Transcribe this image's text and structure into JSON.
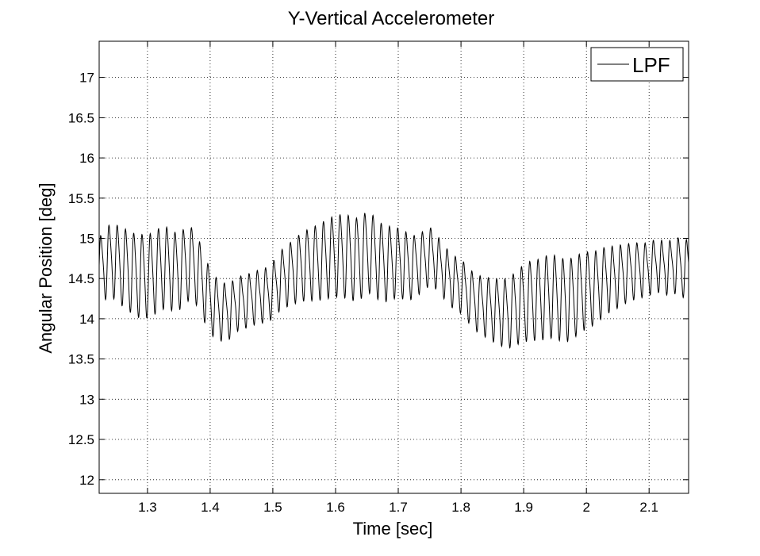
{
  "chart_data": {
    "type": "line",
    "title": "Y-Vertical Accelerometer",
    "xlabel": "Time [sec]",
    "ylabel": "Angular Position [deg]",
    "xlim": [
      1.223,
      2.163
    ],
    "ylim": [
      11.83,
      17.45
    ],
    "xticks": [
      1.3,
      1.4,
      1.5,
      1.6,
      1.7,
      1.8,
      1.9,
      2,
      2.1
    ],
    "xtick_labels": [
      "1.3",
      "1.4",
      "1.5",
      "1.6",
      "1.7",
      "1.8",
      "1.9",
      "2",
      "2.1"
    ],
    "yticks": [
      12,
      12.5,
      13,
      13.5,
      14,
      14.5,
      15,
      15.5,
      16,
      16.5,
      17
    ],
    "ytick_labels": [
      "12",
      "12.5",
      "13",
      "13.5",
      "14",
      "14.5",
      "15",
      "15.5",
      "16",
      "16.5",
      "17"
    ],
    "grid": true,
    "legend_position": "top-right",
    "series": [
      {
        "name": "LPF",
        "color": "#000000",
        "x": [
          1.223,
          1.233,
          1.243,
          1.253,
          1.263,
          1.273,
          1.283,
          1.293,
          1.303,
          1.313,
          1.323,
          1.333,
          1.343,
          1.353,
          1.363,
          1.373,
          1.383,
          1.393,
          1.403,
          1.413,
          1.423,
          1.433,
          1.443,
          1.453,
          1.463,
          1.473,
          1.483,
          1.493,
          1.503,
          1.513,
          1.523,
          1.533,
          1.543,
          1.553,
          1.563,
          1.573,
          1.583,
          1.593,
          1.603,
          1.613,
          1.623,
          1.633,
          1.643,
          1.653,
          1.663,
          1.673,
          1.683,
          1.693,
          1.703,
          1.713,
          1.723,
          1.733,
          1.743,
          1.753,
          1.763,
          1.773,
          1.783,
          1.793,
          1.803,
          1.813,
          1.823,
          1.833,
          1.843,
          1.853,
          1.863,
          1.873,
          1.883,
          1.893,
          1.903,
          1.913,
          1.923,
          1.933,
          1.943,
          1.953,
          1.963,
          1.973,
          1.983,
          1.993,
          2.003,
          2.013,
          2.023,
          2.033,
          2.043,
          2.053,
          2.063,
          2.073,
          2.083,
          2.093,
          2.103,
          2.113,
          2.123,
          2.133,
          2.143,
          2.153,
          2.163
        ],
        "y": [
          14.6,
          14.7,
          14.75,
          14.7,
          14.65,
          14.6,
          14.55,
          14.55,
          14.55,
          14.6,
          14.65,
          14.65,
          14.6,
          14.62,
          14.7,
          14.7,
          14.55,
          14.35,
          14.2,
          14.12,
          14.1,
          14.12,
          14.2,
          14.22,
          14.25,
          14.28,
          14.3,
          14.32,
          14.4,
          14.5,
          14.55,
          14.6,
          14.65,
          14.68,
          14.7,
          14.72,
          14.75,
          14.78,
          14.8,
          14.8,
          14.78,
          14.75,
          14.8,
          14.85,
          14.78,
          14.72,
          14.7,
          14.72,
          14.7,
          14.68,
          14.65,
          14.7,
          14.75,
          14.8,
          14.7,
          14.6,
          14.5,
          14.45,
          14.4,
          14.3,
          14.22,
          14.18,
          14.15,
          14.12,
          14.1,
          14.08,
          14.12,
          14.18,
          14.22,
          14.25,
          14.25,
          14.28,
          14.3,
          14.28,
          14.25,
          14.25,
          14.3,
          14.35,
          14.38,
          14.4,
          14.45,
          14.5,
          14.52,
          14.55,
          14.58,
          14.6,
          14.62,
          14.62,
          14.65,
          14.68,
          14.65,
          14.65,
          14.68,
          14.65,
          14.62
        ],
        "oscillation": {
          "frequency_hz": 76,
          "amplitude_deg": [
            0.3,
            0.5
          ]
        }
      }
    ]
  }
}
